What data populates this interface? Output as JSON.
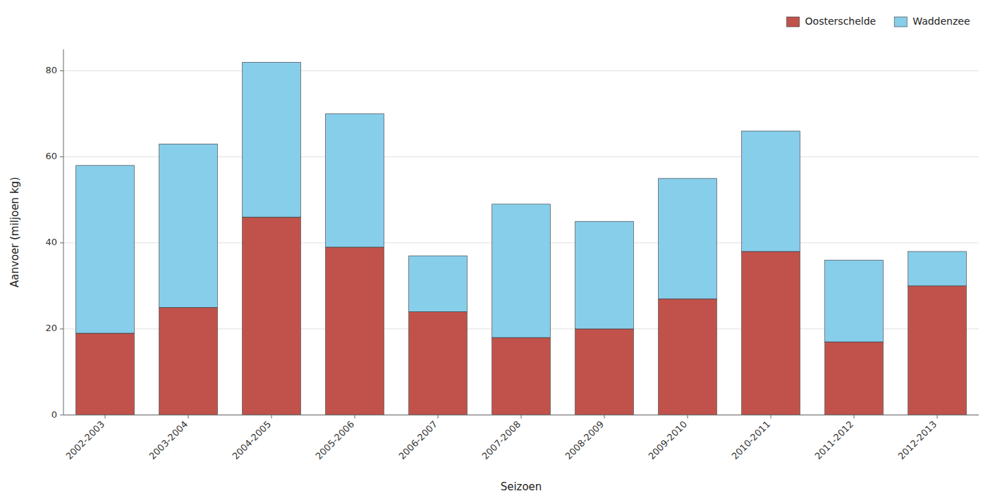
{
  "chart_data": {
    "type": "bar",
    "stacked": true,
    "xlabel": "Seizoen",
    "ylabel": "Aanvoer (miljoen kg)",
    "categories": [
      "2002-2003",
      "2003-2004",
      "2004-2005",
      "2005-2006",
      "2006-2007",
      "2007-2008",
      "2008-2009",
      "2009-2010",
      "2010-2011",
      "2011-2012",
      "2012-2013"
    ],
    "series": [
      {
        "name": "Oosterschelde",
        "color": "#c1524b",
        "values": [
          19,
          25,
          46,
          39,
          24,
          18,
          20,
          27,
          38,
          17,
          30
        ]
      },
      {
        "name": "Waddenzee",
        "color": "#87ceeb",
        "values": [
          39,
          38,
          36,
          31,
          13,
          31,
          25,
          28,
          28,
          19,
          8
        ]
      }
    ],
    "ylim": [
      0,
      85
    ],
    "yticks": [
      0,
      20,
      40,
      60,
      80
    ],
    "grid": true,
    "legend": "upper right"
  }
}
